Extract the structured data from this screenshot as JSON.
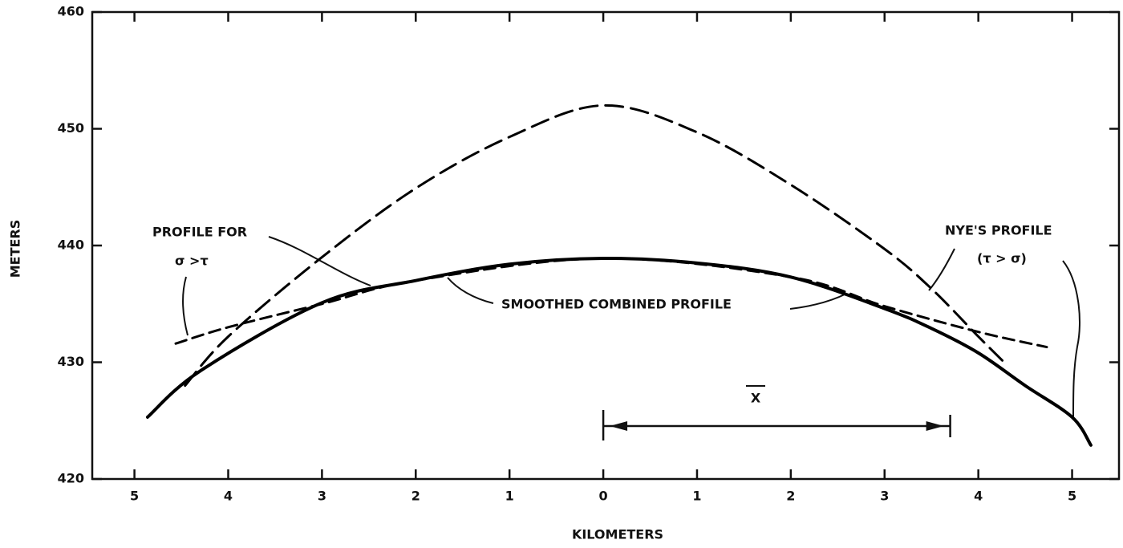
{
  "chart_data": {
    "type": "line",
    "xlabel": "KILOMETERS",
    "ylabel": "METERS",
    "xlim": [
      -5.45,
      5.5
    ],
    "ylim": [
      420,
      460
    ],
    "xticks": [
      {
        "value": -5,
        "label": "5"
      },
      {
        "value": -4,
        "label": "4"
      },
      {
        "value": -3,
        "label": "3"
      },
      {
        "value": -2,
        "label": "2"
      },
      {
        "value": -1,
        "label": "1"
      },
      0,
      1,
      2,
      3,
      4,
      5
    ],
    "yticks": [
      420,
      430,
      440,
      450,
      460
    ],
    "series": [
      {
        "name": "SMOOTHED COMBINED PROFILE",
        "color": "#000000",
        "dash": "solid",
        "x": [
          -4.86,
          -4.29,
          -3,
          -2,
          -1,
          0,
          1,
          2,
          3,
          3.5,
          4,
          4.5,
          5,
          5.2
        ],
        "values": [
          425.3,
          429.3,
          435.1,
          437.0,
          438.4,
          438.9,
          438.5,
          437.3,
          434.6,
          432.9,
          430.8,
          428.0,
          425.3,
          422.9
        ]
      },
      {
        "name": "NYE'S PROFILE",
        "color": "#000000",
        "dash": "long",
        "x": [
          -4.46,
          -4,
          -3,
          -2,
          -1,
          0,
          1,
          2,
          3,
          3.5,
          4,
          4.3
        ],
        "values": [
          428.0,
          432.2,
          439.0,
          444.9,
          449.3,
          452.0,
          449.7,
          445.2,
          439.7,
          436.3,
          432.2,
          429.8
        ]
      },
      {
        "name": "PROFILE FOR",
        "color": "#000000",
        "dash": "short",
        "x": [
          -4.56,
          -4,
          -3,
          -2,
          0,
          2,
          3,
          4,
          4.73
        ],
        "values": [
          431.6,
          433.0,
          435.0,
          437.0,
          438.9,
          437.3,
          434.8,
          432.6,
          431.3
        ]
      }
    ],
    "annotations": [
      "PROFILE FOR",
      "σ >τ",
      "SMOOTHED COMBINED PROFILE",
      "NYE'S PROFILE",
      "(τ > σ)"
    ],
    "xbar_label": "X",
    "xbar_range": [
      0,
      3.7
    ]
  }
}
